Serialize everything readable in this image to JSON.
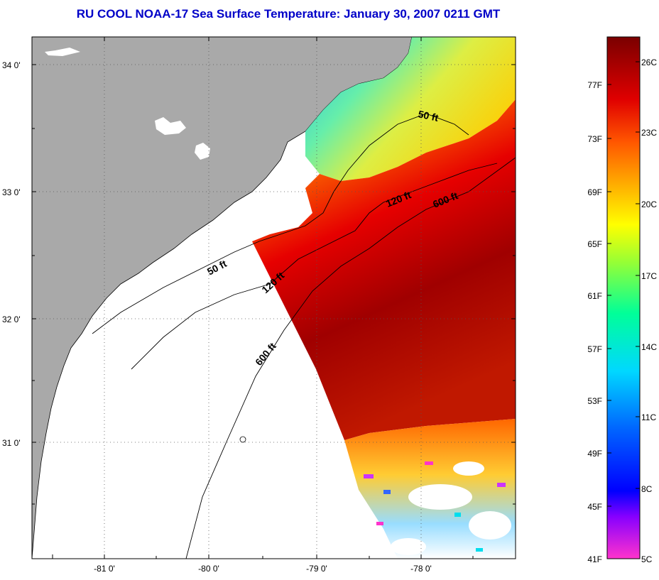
{
  "title": "RU COOL  NOAA-17  Sea Surface Temperature:  January 30, 2007 0211 GMT",
  "latitude_labels": [
    "34 0'",
    "33 0'",
    "32 0'",
    "31 0'"
  ],
  "longitude_labels": [
    "-81 0'",
    "-80 0'",
    "-79 0'",
    "-78 0'"
  ],
  "contour_labels": [
    "50 ft",
    "120 ft",
    "600 ft",
    "50 ft",
    "120 ft",
    "600 ft"
  ],
  "colorbar": {
    "fahrenheit_labels": [
      "77F",
      "73F",
      "69F",
      "65F",
      "61F",
      "57F",
      "53F",
      "49F",
      "45F",
      "41F"
    ],
    "celsius_labels": [
      "26C",
      "23C",
      "20C",
      "17C",
      "14C",
      "11C",
      "8C",
      "5C"
    ]
  },
  "colors": {
    "land": "#a9a9a9",
    "title": "#0000c8"
  }
}
